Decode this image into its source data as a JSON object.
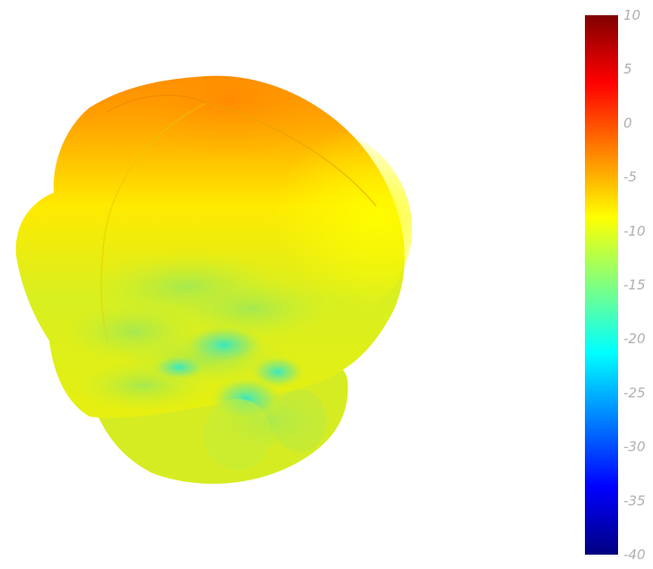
{
  "chart_data": {
    "type": "surface3d",
    "title": "",
    "colorbar": {
      "range": [
        -40,
        10
      ],
      "ticks": [
        10,
        5,
        0,
        -5,
        -10,
        -15,
        -20,
        -25,
        -30,
        -35,
        -40
      ],
      "tick_labels": [
        "10",
        "5",
        "0",
        "-5",
        "-10",
        "-15",
        "-20",
        "-25",
        "-30",
        "-35",
        "-40"
      ],
      "colormap": "jet",
      "stops": [
        {
          "value": 10,
          "color": "#800000"
        },
        {
          "value": 3.75,
          "color": "#ff0000"
        },
        {
          "value": -2.5,
          "color": "#ff8000"
        },
        {
          "value": -8.75,
          "color": "#ffff00"
        },
        {
          "value": -15,
          "color": "#80ff80"
        },
        {
          "value": -21.25,
          "color": "#00ffff"
        },
        {
          "value": -27.5,
          "color": "#0080ff"
        },
        {
          "value": -33.75,
          "color": "#0000ff"
        },
        {
          "value": -40,
          "color": "#000080"
        }
      ]
    },
    "surface": {
      "value_range_shown": [
        -22,
        1
      ],
      "top_color": "#ff8c00",
      "mid_color": "#ffee00",
      "low_color": "#2ee8c8"
    }
  }
}
